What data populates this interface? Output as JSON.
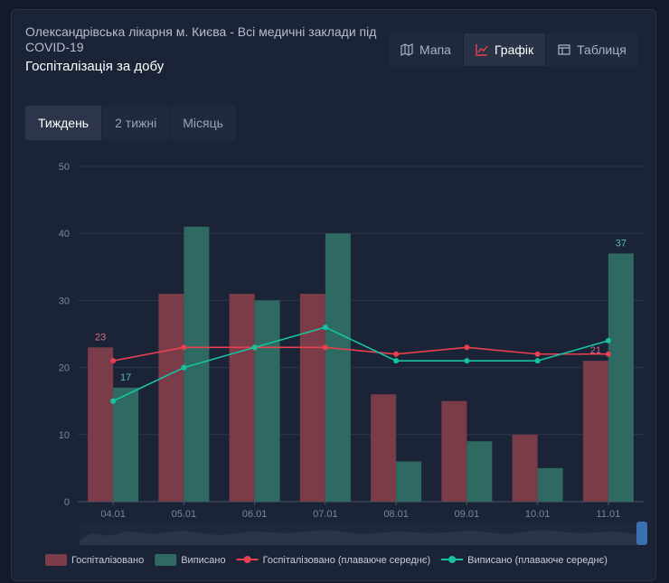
{
  "header": {
    "title": "Олександрівська лікарня м. Києва - Всі медичні заклади під COVID-19",
    "subtitle": "Госпіталізація за добу"
  },
  "view_buttons": [
    "Мапа",
    "Графік",
    "Таблиця"
  ],
  "period_tabs": [
    "Тиждень",
    "2 тижні",
    "Місяць"
  ],
  "chart_data": {
    "type": "bar",
    "categories": [
      "04.01",
      "05.01",
      "06.01",
      "07.01",
      "08.01",
      "09.01",
      "10.01",
      "11.01"
    ],
    "series": [
      {
        "name": "Госпіталізовано",
        "type": "bar",
        "color": "#7b3c49",
        "values": [
          23,
          31,
          31,
          31,
          16,
          15,
          10,
          21
        ]
      },
      {
        "name": "Виписано",
        "type": "bar",
        "color": "#2f6a62",
        "values": [
          17,
          41,
          30,
          40,
          6,
          9,
          5,
          37
        ]
      },
      {
        "name": "Госпіталізовано (плаваюче середнє)",
        "type": "line",
        "color": "#e8404f",
        "values": [
          21,
          23,
          23,
          23,
          22,
          23,
          22,
          22
        ]
      },
      {
        "name": "Виписано (плаваюче середнє)",
        "type": "line",
        "color": "#17c2a0",
        "values": [
          15,
          20,
          23,
          26,
          21,
          21,
          21,
          24
        ]
      }
    ],
    "ylim": [
      0,
      50
    ],
    "yticks": [
      0,
      10,
      20,
      30,
      40,
      50
    ],
    "grid": true
  }
}
